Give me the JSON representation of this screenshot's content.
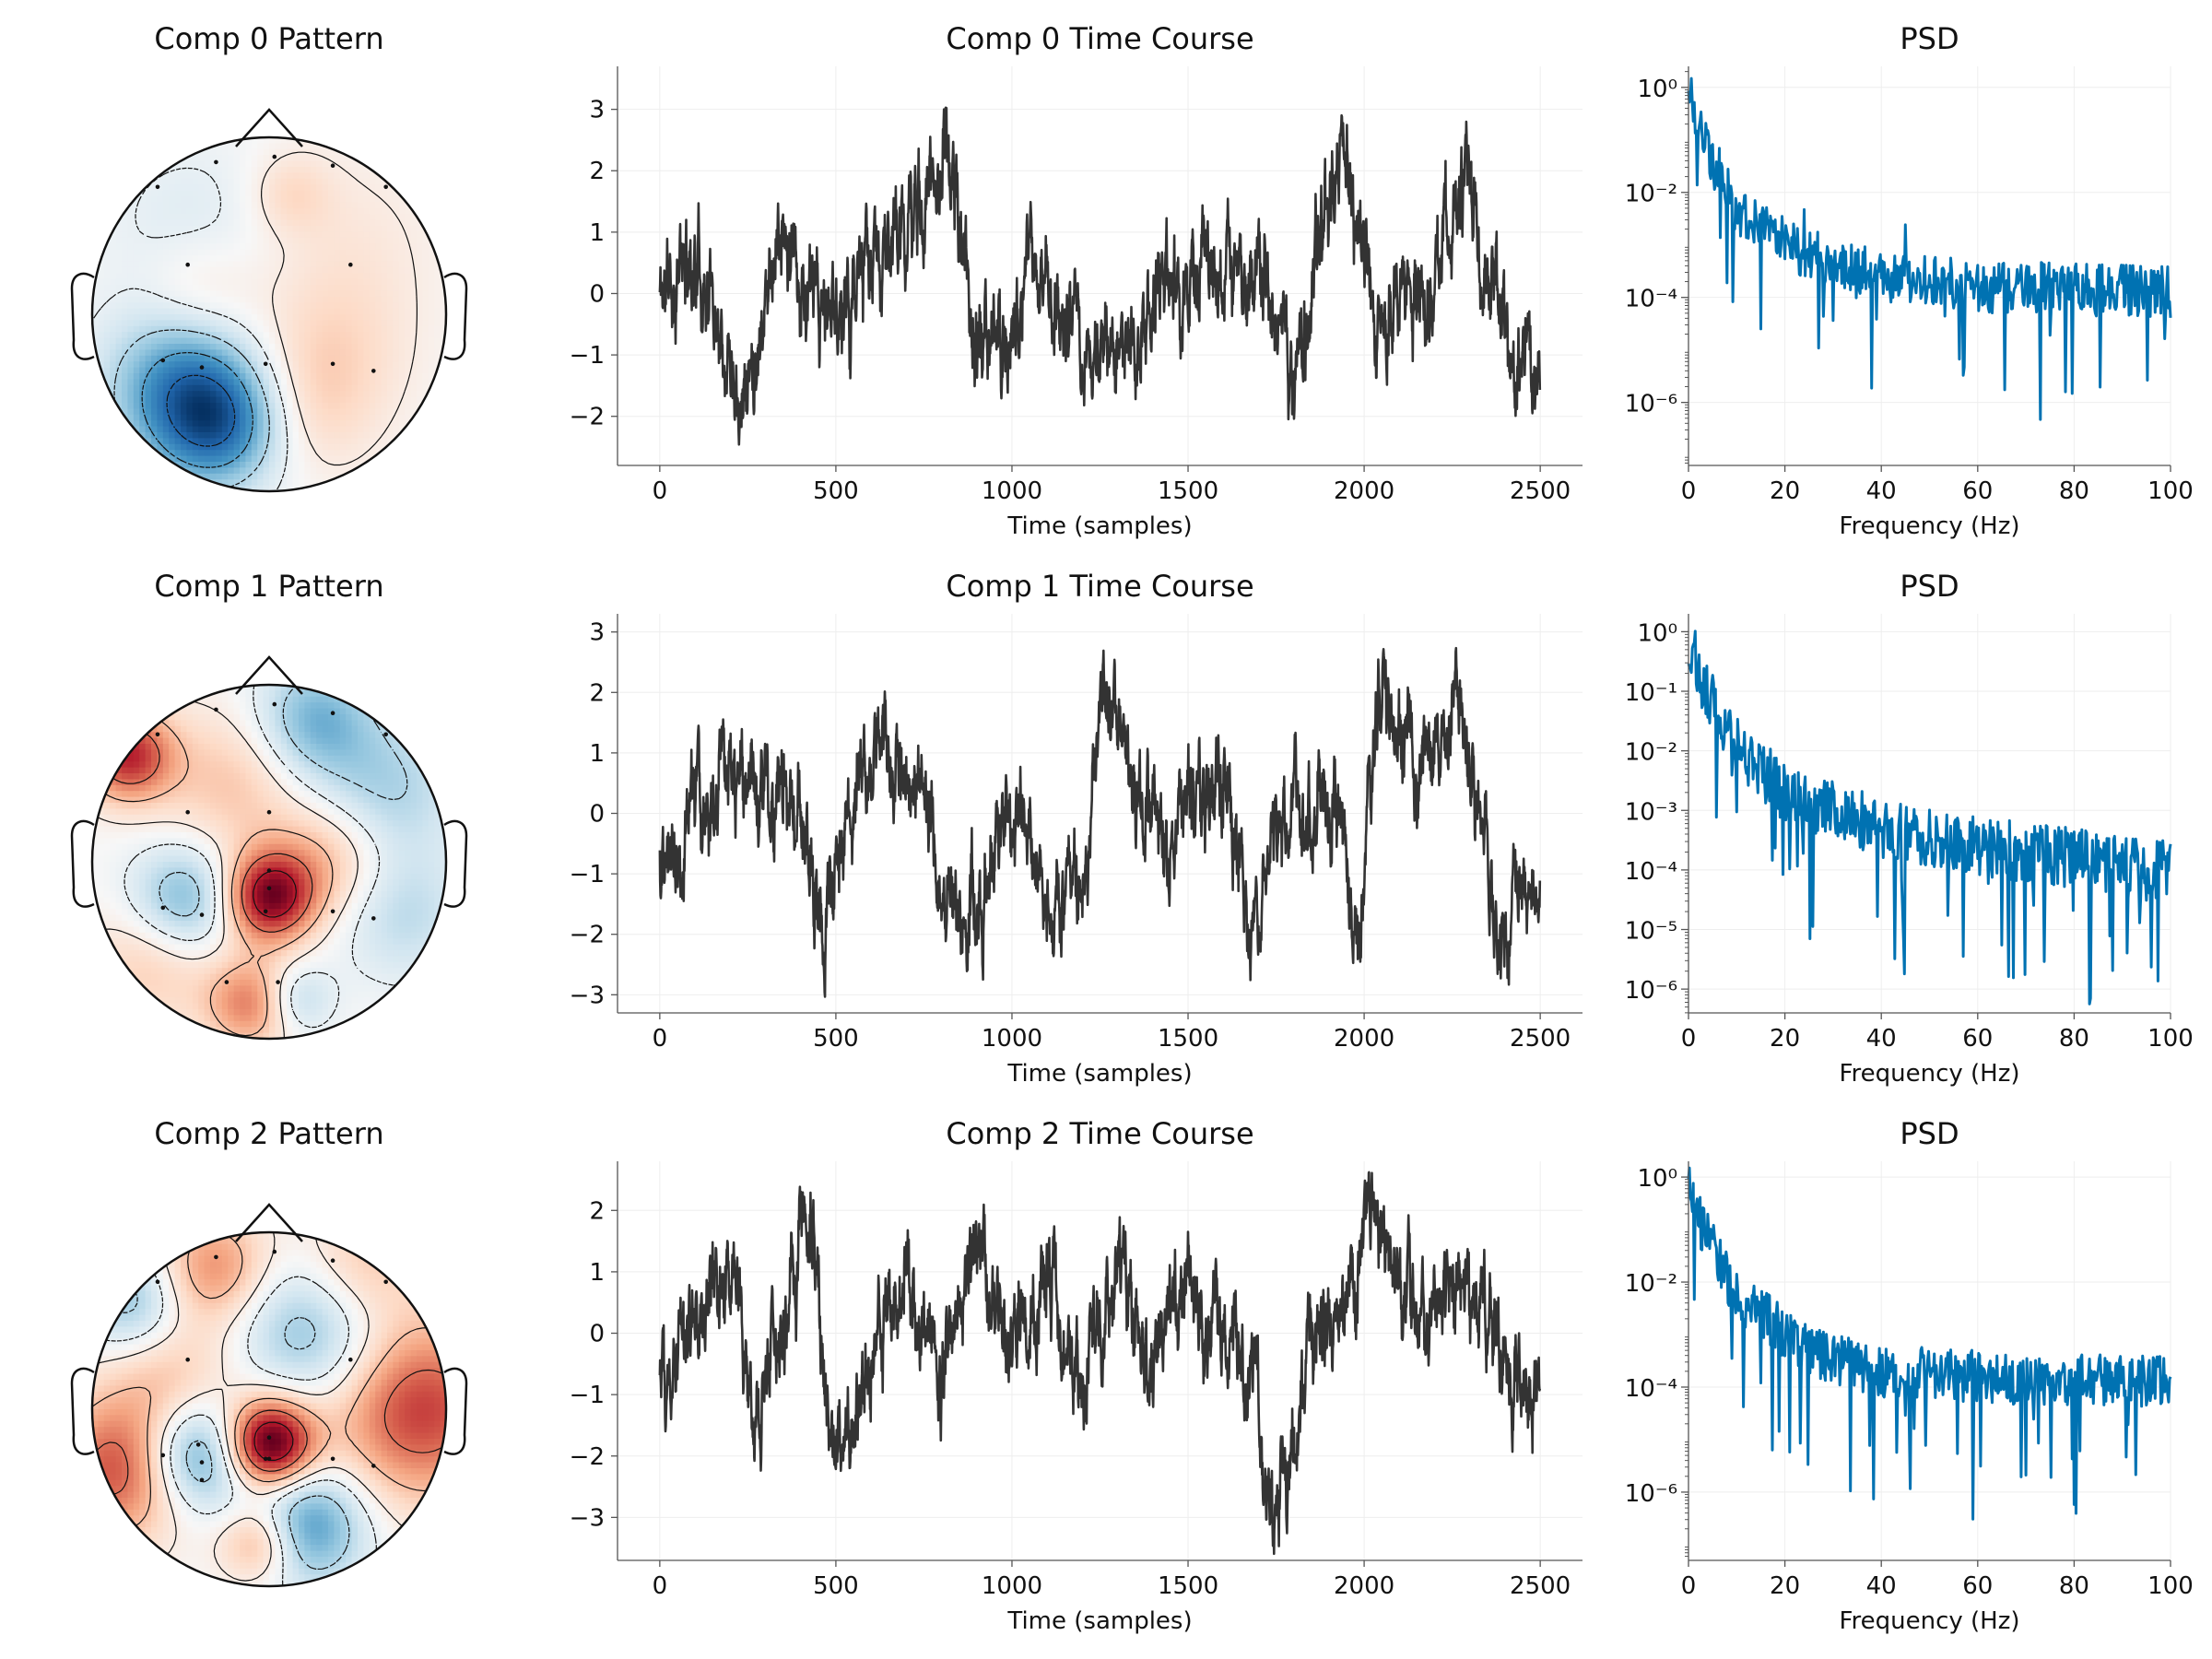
{
  "figure": {
    "background": "#ffffff"
  },
  "components": [
    {
      "pattern": {
        "title": "Comp 0 Pattern",
        "sensors": [
          [
            -0.63,
            0.72
          ],
          [
            -0.3,
            0.86
          ],
          [
            0.03,
            0.89
          ],
          [
            0.36,
            0.84
          ],
          [
            0.66,
            0.72
          ],
          [
            -0.46,
            0.28
          ],
          [
            0.46,
            0.28
          ],
          [
            -0.6,
            -0.26
          ],
          [
            -0.38,
            -0.3
          ],
          [
            -0.02,
            -0.28
          ],
          [
            0.36,
            -0.28
          ],
          [
            0.59,
            -0.32
          ]
        ],
        "sources": [
          [
            -0.28,
            -0.62,
            -1.0,
            0.26
          ],
          [
            -0.55,
            -0.45,
            -0.55,
            0.3
          ],
          [
            -0.45,
            -0.2,
            -0.28,
            0.28
          ],
          [
            -0.4,
            0.45,
            -0.22,
            0.36
          ],
          [
            -0.4,
            0.1,
            0.35,
            0.24
          ],
          [
            0.12,
            0.68,
            0.25,
            0.16
          ],
          [
            0.4,
            0.4,
            0.16,
            0.4
          ],
          [
            0.35,
            -0.2,
            0.22,
            0.32
          ],
          [
            0.2,
            -0.55,
            0.25,
            0.28
          ]
        ]
      },
      "timecourse": {
        "title": "Comp 0 Time Course",
        "seed": 11,
        "n": 2500,
        "ylim": [
          -2.8,
          3.7
        ],
        "yticks": [
          -2,
          -1,
          0,
          1,
          2,
          3
        ],
        "anchors": [
          [
            0,
            0.0
          ],
          [
            100,
            0.6
          ],
          [
            250,
            -1.5
          ],
          [
            330,
            1.0
          ],
          [
            450,
            -0.5
          ],
          [
            600,
            0.3
          ],
          [
            700,
            1.0
          ],
          [
            820,
            2.4
          ],
          [
            900,
            -1.0
          ],
          [
            1000,
            -0.6
          ],
          [
            1070,
            0.5
          ],
          [
            1200,
            -1.0
          ],
          [
            1350,
            -1.0
          ],
          [
            1420,
            0.4
          ],
          [
            1500,
            0.0
          ],
          [
            1700,
            0.6
          ],
          [
            1800,
            -1.4
          ],
          [
            1940,
            2.3
          ],
          [
            2000,
            0.3
          ],
          [
            2100,
            -0.4
          ],
          [
            2200,
            0.2
          ],
          [
            2300,
            1.9
          ],
          [
            2400,
            -0.9
          ],
          [
            2480,
            -1.3
          ],
          [
            2500,
            -1.4
          ]
        ]
      },
      "psd": {
        "title": "PSD",
        "seed": 21,
        "decades": [
          -7.2,
          0.4
        ],
        "yticks": [
          -6,
          -4,
          -2,
          0
        ],
        "base": [
          [
            0,
            0.0
          ],
          [
            3,
            -1.0
          ],
          [
            10,
            -2.3
          ],
          [
            25,
            -3.2
          ],
          [
            40,
            -3.6
          ],
          [
            60,
            -3.8
          ],
          [
            100,
            -3.9
          ]
        ],
        "spikes": [
          [
            24,
            1.2
          ],
          [
            45,
            0.6
          ]
        ]
      }
    },
    {
      "pattern": {
        "title": "Comp 1 Pattern",
        "sensors": [
          [
            -0.63,
            0.72
          ],
          [
            -0.3,
            0.86
          ],
          [
            0.03,
            0.89
          ],
          [
            0.36,
            0.84
          ],
          [
            0.66,
            0.72
          ],
          [
            -0.46,
            0.28
          ],
          [
            0.0,
            0.28
          ],
          [
            -0.6,
            -0.26
          ],
          [
            -0.38,
            -0.3
          ],
          [
            -0.02,
            -0.28
          ],
          [
            0.36,
            -0.28
          ],
          [
            0.59,
            -0.32
          ],
          [
            -0.24,
            -0.68
          ],
          [
            0.05,
            -0.68
          ],
          [
            0.0,
            -0.15
          ],
          [
            0.0,
            -0.05
          ]
        ],
        "sources": [
          [
            0.0,
            -0.2,
            1.0,
            0.18
          ],
          [
            -0.8,
            0.6,
            0.8,
            0.18
          ],
          [
            0.35,
            0.02,
            0.35,
            0.24
          ],
          [
            -0.48,
            -0.22,
            -0.55,
            0.22
          ],
          [
            0.25,
            0.8,
            -0.5,
            0.24
          ],
          [
            0.65,
            0.4,
            -0.35,
            0.3
          ],
          [
            0.75,
            -0.3,
            -0.28,
            0.26
          ],
          [
            -0.1,
            -0.8,
            0.55,
            0.18
          ],
          [
            0.15,
            -0.78,
            -0.35,
            0.14
          ],
          [
            -0.2,
            0.45,
            0.3,
            0.3
          ],
          [
            -0.65,
            -0.55,
            0.3,
            0.26
          ]
        ]
      },
      "timecourse": {
        "title": "Comp 1 Time Course",
        "seed": 37,
        "n": 2500,
        "ylim": [
          -3.3,
          3.3
        ],
        "yticks": [
          -3,
          -2,
          -1,
          0,
          1,
          2,
          3
        ],
        "anchors": [
          [
            0,
            -0.8
          ],
          [
            100,
            0.2
          ],
          [
            220,
            0.3
          ],
          [
            380,
            0.5
          ],
          [
            460,
            -1.8
          ],
          [
            620,
            1.3
          ],
          [
            780,
            -0.2
          ],
          [
            850,
            -1.8
          ],
          [
            1000,
            0.0
          ],
          [
            1100,
            -1.0
          ],
          [
            1200,
            -1.3
          ],
          [
            1270,
            2.0
          ],
          [
            1350,
            0.5
          ],
          [
            1450,
            -0.5
          ],
          [
            1600,
            0.7
          ],
          [
            1680,
            -2.2
          ],
          [
            1800,
            0.3
          ],
          [
            1920,
            0.1
          ],
          [
            1990,
            -2.4
          ],
          [
            2040,
            2.5
          ],
          [
            2150,
            0.5
          ],
          [
            2260,
            1.8
          ],
          [
            2340,
            -0.5
          ],
          [
            2380,
            -2.3
          ],
          [
            2500,
            -0.8
          ]
        ]
      },
      "psd": {
        "title": "PSD",
        "seed": 53,
        "decades": [
          -6.4,
          0.3
        ],
        "yticks": [
          -6,
          -5,
          -4,
          -3,
          -2,
          -1,
          0
        ],
        "base": [
          [
            0,
            -0.1
          ],
          [
            3,
            -0.9
          ],
          [
            10,
            -1.9
          ],
          [
            20,
            -2.7
          ],
          [
            40,
            -3.3
          ],
          [
            60,
            -3.6
          ],
          [
            100,
            -4.0
          ]
        ],
        "spikes": []
      }
    },
    {
      "pattern": {
        "title": "Comp 2 Pattern",
        "sensors": [
          [
            -0.63,
            0.72
          ],
          [
            -0.3,
            0.86
          ],
          [
            0.03,
            0.89
          ],
          [
            0.36,
            0.84
          ],
          [
            0.66,
            0.72
          ],
          [
            -0.46,
            0.28
          ],
          [
            0.46,
            0.28
          ],
          [
            -0.6,
            -0.26
          ],
          [
            -0.38,
            -0.3
          ],
          [
            -0.02,
            -0.28
          ],
          [
            0.36,
            -0.28
          ],
          [
            0.59,
            -0.32
          ],
          [
            -0.4,
            -0.2
          ],
          [
            -0.38,
            -0.4
          ],
          [
            0.0,
            -0.16
          ],
          [
            0.0,
            -0.28
          ]
        ],
        "sources": [
          [
            0.0,
            -0.2,
            1.0,
            0.18
          ],
          [
            -0.4,
            -0.25,
            -0.6,
            0.22
          ],
          [
            0.85,
            0.0,
            0.6,
            0.36
          ],
          [
            -0.85,
            -0.35,
            0.55,
            0.28
          ],
          [
            0.2,
            -0.65,
            -0.55,
            0.24
          ],
          [
            -0.3,
            0.8,
            0.4,
            0.22
          ],
          [
            -0.78,
            0.6,
            -0.35,
            0.2
          ],
          [
            0.25,
            0.45,
            -0.4,
            0.3
          ],
          [
            -0.05,
            -0.75,
            0.45,
            0.16
          ],
          [
            0.5,
            0.8,
            0.28,
            0.25
          ],
          [
            -0.55,
            0.15,
            0.25,
            0.28
          ]
        ]
      },
      "timecourse": {
        "title": "Comp 2 Time Course",
        "seed": 71,
        "n": 2500,
        "ylim": [
          -3.7,
          2.8
        ],
        "yticks": [
          -3,
          -2,
          -1,
          0,
          1,
          2
        ],
        "anchors": [
          [
            0,
            -0.8
          ],
          [
            100,
            0.0
          ],
          [
            200,
            1.1
          ],
          [
            270,
            -1.5
          ],
          [
            360,
            0.5
          ],
          [
            430,
            2.2
          ],
          [
            500,
            -2.0
          ],
          [
            600,
            -0.5
          ],
          [
            700,
            1.0
          ],
          [
            800,
            -0.8
          ],
          [
            900,
            1.5
          ],
          [
            1000,
            -0.2
          ],
          [
            1100,
            0.8
          ],
          [
            1200,
            -1.0
          ],
          [
            1300,
            1.3
          ],
          [
            1400,
            -0.5
          ],
          [
            1500,
            0.8
          ],
          [
            1600,
            0.0
          ],
          [
            1700,
            -1.0
          ],
          [
            1740,
            -3.0
          ],
          [
            1850,
            -0.3
          ],
          [
            1950,
            0.5
          ],
          [
            2030,
            2.2
          ],
          [
            2150,
            0.3
          ],
          [
            2350,
            0.6
          ],
          [
            2420,
            -0.9
          ],
          [
            2500,
            -0.7
          ]
        ]
      },
      "psd": {
        "title": "PSD",
        "seed": 97,
        "decades": [
          -7.3,
          0.3
        ],
        "yticks": [
          -6,
          -4,
          -2,
          0
        ],
        "base": [
          [
            0,
            -0.1
          ],
          [
            3,
            -1.0
          ],
          [
            10,
            -2.3
          ],
          [
            25,
            -3.3
          ],
          [
            40,
            -3.7
          ],
          [
            60,
            -3.8
          ],
          [
            100,
            -3.9
          ]
        ],
        "spikes": []
      }
    }
  ],
  "chart_data": [
    {
      "type": "heatmap",
      "titles": [
        "Comp 0 Pattern",
        "Comp 1 Pattern",
        "Comp 2 Pattern"
      ],
      "description_of_values": "Topographic scalp maps, diverging RdBu colormap (red positive, blue negative)",
      "colormap": [
        "#053061",
        "#2166ac",
        "#4393c3",
        "#92c5de",
        "#d1e5f0",
        "#f7f7f7",
        "#fddbc7",
        "#f4a582",
        "#d6604d",
        "#b2182b",
        "#67001f"
      ]
    },
    {
      "type": "line",
      "titles": [
        "Comp 0 Time Course",
        "Comp 1 Time Course",
        "Comp 2 Time Course"
      ],
      "xlabel": "Time (samples)",
      "xlim": [
        -120,
        2620
      ],
      "xticks": [
        0,
        500,
        1000,
        1500,
        2000,
        2500
      ],
      "line_color": "#333333",
      "series_ylims": [
        [
          -2.8,
          3.7
        ],
        [
          -3.3,
          3.3
        ],
        [
          -3.7,
          2.8
        ]
      ]
    },
    {
      "type": "line",
      "titles": [
        "PSD",
        "PSD",
        "PSD"
      ],
      "xlabel": "Frequency (Hz)",
      "xlim": [
        0,
        100
      ],
      "xticks": [
        0,
        20,
        40,
        60,
        80,
        100
      ],
      "yscale": "log",
      "line_color": "#0072b2"
    }
  ]
}
